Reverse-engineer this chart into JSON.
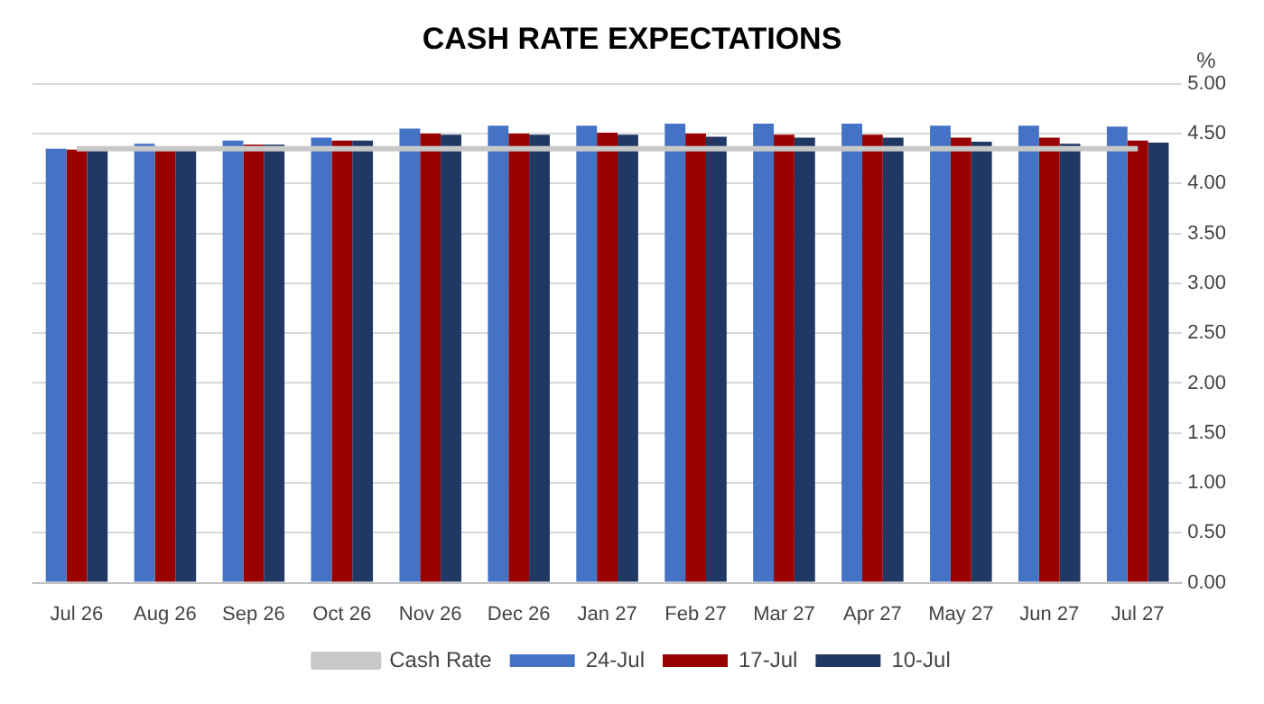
{
  "chart_data": {
    "type": "bar",
    "title": "CASH RATE EXPECTATIONS",
    "ylabel": "%",
    "categories": [
      "Jul 26",
      "Aug 26",
      "Sep 26",
      "Oct 26",
      "Nov 26",
      "Dec 26",
      "Jan 27",
      "Feb 27",
      "Mar 27",
      "Apr 27",
      "May 27",
      "Jun 27",
      "Jul 27"
    ],
    "series": [
      {
        "name": "24-Jul",
        "color": "#4472c4",
        "values": [
          4.35,
          4.4,
          4.43,
          4.46,
          4.55,
          4.58,
          4.58,
          4.6,
          4.6,
          4.6,
          4.58,
          4.58,
          4.57
        ]
      },
      {
        "name": "17-Jul",
        "color": "#990000",
        "values": [
          4.34,
          4.34,
          4.39,
          4.43,
          4.5,
          4.5,
          4.51,
          4.5,
          4.49,
          4.49,
          4.46,
          4.46,
          4.43
        ]
      },
      {
        "name": "10-Jul",
        "color": "#203864",
        "values": [
          4.33,
          4.34,
          4.39,
          4.43,
          4.49,
          4.49,
          4.49,
          4.47,
          4.46,
          4.46,
          4.42,
          4.4,
          4.41
        ]
      },
      {
        "name": "Cash Rate",
        "type": "line",
        "color": "#c8c8c8",
        "values": [
          4.35,
          4.35,
          4.35,
          4.35,
          4.35,
          4.35,
          4.35,
          4.35,
          4.35,
          4.35,
          4.35,
          4.35,
          4.35
        ]
      }
    ],
    "ylim": [
      0,
      5
    ],
    "yticks": [
      {
        "value": 0,
        "label": "0.00"
      },
      {
        "value": 0.5,
        "label": "0.50"
      },
      {
        "value": 1,
        "label": "1.00"
      },
      {
        "value": 1.5,
        "label": "1.50"
      },
      {
        "value": 2,
        "label": "2.00"
      },
      {
        "value": 2.5,
        "label": "2.50"
      },
      {
        "value": 3,
        "label": "3.00"
      },
      {
        "value": 3.5,
        "label": "3.50"
      },
      {
        "value": 4,
        "label": "4.00"
      },
      {
        "value": 4.5,
        "label": "4.50"
      },
      {
        "value": 5,
        "label": "5.00"
      }
    ],
    "grid": "y",
    "legend": "bottom"
  }
}
